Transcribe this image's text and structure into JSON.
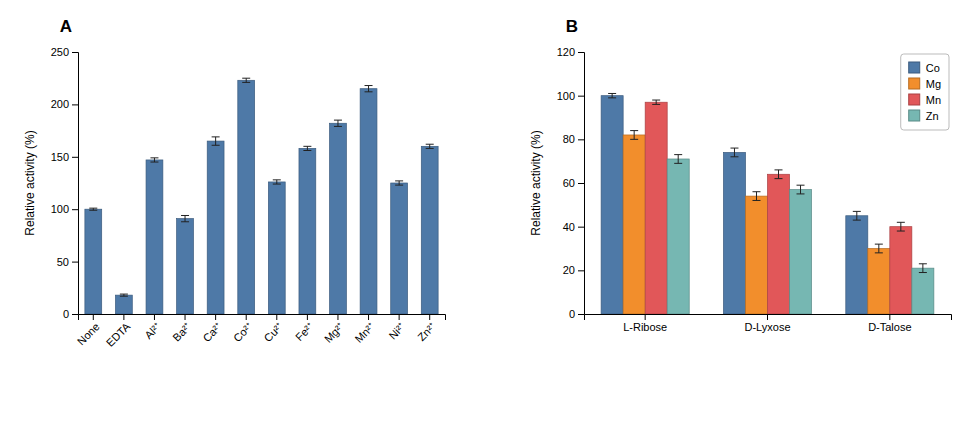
{
  "chart_data": [
    {
      "type": "bar",
      "title": "A",
      "categories": [
        "None",
        "EDTA",
        "Al²⁺",
        "Ba²⁺",
        "Ca²⁺",
        "Co²⁺",
        "Cu²⁺",
        "Fe²⁺",
        "Mg²⁺",
        "Mn²⁺",
        "Ni²⁺",
        "Zn²⁺"
      ],
      "values": [
        100,
        18,
        147,
        91,
        165,
        223,
        126,
        158,
        182,
        215,
        125,
        160
      ],
      "errors": [
        1,
        1,
        2,
        3,
        4,
        2,
        2,
        2,
        3,
        3,
        2,
        2
      ],
      "y_label": "Relative activity (%)",
      "ylim": [
        0,
        250
      ],
      "yticks": [
        0,
        50,
        100,
        150,
        200,
        250
      ],
      "grid": false
    },
    {
      "type": "bar",
      "title": "B",
      "categories": [
        "L-Ribose",
        "D-Lyxose",
        "D-Talose"
      ],
      "series": [
        {
          "name": "Co",
          "values": [
            100,
            74,
            45
          ],
          "errors": [
            1,
            2,
            2
          ]
        },
        {
          "name": "Mg",
          "values": [
            82,
            54,
            30
          ],
          "errors": [
            2,
            2,
            2
          ]
        },
        {
          "name": "Mn",
          "values": [
            97,
            64,
            40
          ],
          "errors": [
            1,
            2,
            2
          ]
        },
        {
          "name": "Zn",
          "values": [
            71,
            57,
            21
          ],
          "errors": [
            2,
            2,
            2
          ]
        }
      ],
      "y_label": "Relative activity (%)",
      "ylim": [
        0,
        120
      ],
      "yticks": [
        0,
        20,
        40,
        60,
        80,
        100,
        120
      ],
      "legend": "upper right",
      "grid": false
    }
  ]
}
